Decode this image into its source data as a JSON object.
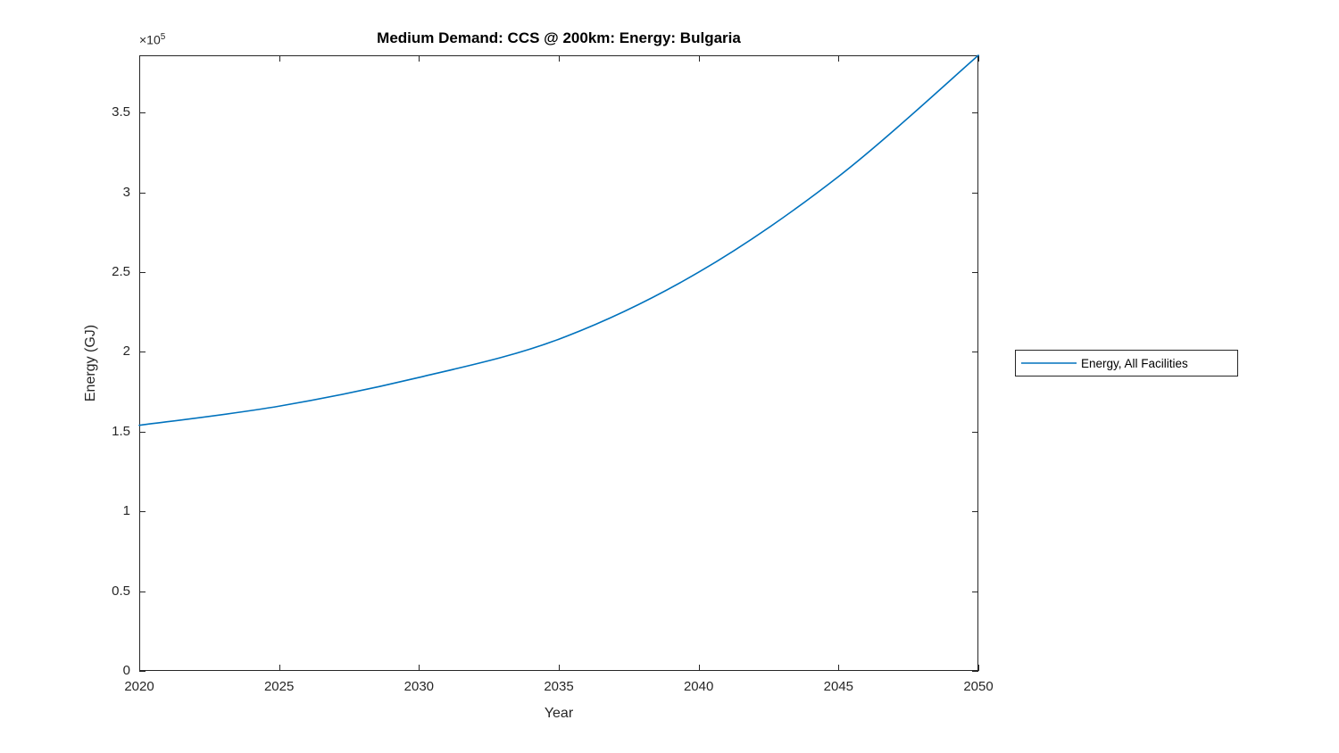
{
  "colors": {
    "background": "#ffffff",
    "axis": "#262626",
    "title": "#000000",
    "accent_line": "#0072BD"
  },
  "chart_data": {
    "type": "line",
    "title": "Medium Demand: CCS @ 200km: Energy: Bulgaria",
    "xlabel": "Year",
    "ylabel": "Energy (GJ)",
    "y_axis_multiplier": {
      "base": "×10",
      "exp": "5"
    },
    "xlim": [
      2020,
      2050
    ],
    "ylim": [
      0,
      386000
    ],
    "grid": false,
    "legend": {
      "position": "right-outside",
      "entries": [
        "Energy, All Facilities"
      ]
    },
    "xticks": {
      "values": [
        2020,
        2025,
        2030,
        2035,
        2040,
        2045,
        2050
      ],
      "labels": [
        "2020",
        "2025",
        "2030",
        "2035",
        "2040",
        "2045",
        "2050"
      ]
    },
    "yticks": {
      "values": [
        0,
        50000,
        100000,
        150000,
        200000,
        250000,
        300000,
        350000
      ],
      "labels": [
        "0",
        "0.5",
        "1",
        "1.5",
        "2",
        "2.5",
        "3",
        "3.5"
      ]
    },
    "series": [
      {
        "name": "Energy, All Facilities",
        "color": "#0072BD",
        "x": [
          2020,
          2025,
          2030,
          2035,
          2040,
          2045,
          2050
        ],
        "y": [
          154000,
          166000,
          184000,
          208000,
          250000,
          310000,
          386000
        ]
      }
    ]
  }
}
